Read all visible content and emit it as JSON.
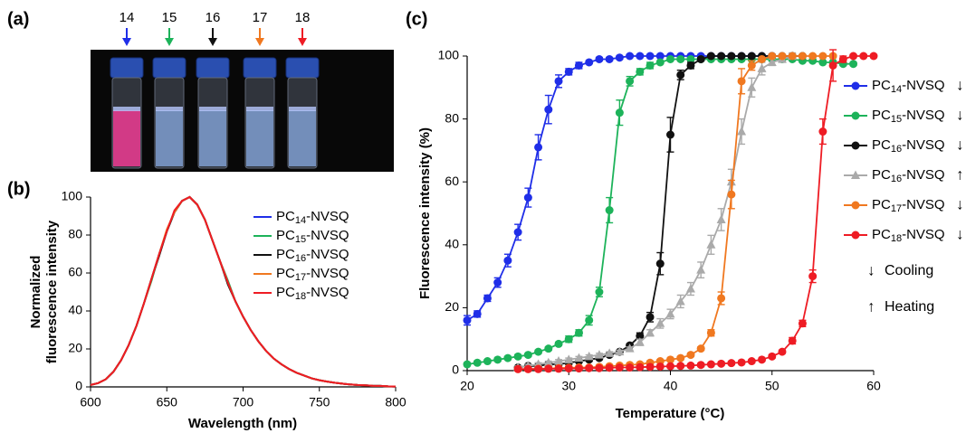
{
  "photo": {
    "panel_label": "(a)",
    "labels": [
      {
        "text": "14",
        "color": "#1f2ee8"
      },
      {
        "text": "15",
        "color": "#1db35a"
      },
      {
        "text": "16",
        "color": "#111111"
      },
      {
        "text": "17",
        "color": "#f07820"
      },
      {
        "text": "18",
        "color": "#ee1c24"
      }
    ]
  },
  "chart_data": [
    {
      "type": "line",
      "panel_label": "(b)",
      "xlabel": "Wavelength (nm)",
      "ylabel": [
        "Normalized",
        "fluorescence intensity"
      ],
      "xlim": [
        600,
        800
      ],
      "xticks": [
        600,
        650,
        700,
        750,
        800
      ],
      "ylim": [
        0,
        100
      ],
      "yticks": [
        0,
        20,
        40,
        60,
        80,
        100
      ],
      "markers": false,
      "x": [
        600,
        605,
        610,
        615,
        620,
        625,
        630,
        635,
        640,
        645,
        650,
        655,
        660,
        665,
        670,
        675,
        680,
        685,
        690,
        695,
        700,
        705,
        710,
        715,
        720,
        725,
        730,
        735,
        740,
        745,
        750,
        755,
        760,
        765,
        770,
        775,
        780,
        785,
        790,
        795,
        800
      ],
      "series": [
        {
          "name": "PC14-NVSQ",
          "color": "#1f2ee8",
          "values": [
            1,
            2,
            4,
            8,
            14,
            22,
            32,
            44,
            57,
            70,
            82,
            92,
            98,
            100,
            96,
            88,
            77,
            66,
            55,
            45,
            37,
            30,
            24,
            19,
            15,
            12,
            9.5,
            7.5,
            6,
            4.5,
            3.5,
            2.8,
            2.2,
            1.7,
            1.3,
            1,
            0.8,
            0.6,
            0.5,
            0.3,
            0.2
          ]
        },
        {
          "name": "PC15-NVSQ",
          "color": "#1db35a",
          "values": [
            1,
            2,
            4,
            8,
            14,
            22,
            32,
            44,
            56,
            70,
            82,
            92,
            98,
            100,
            96,
            88,
            77,
            66,
            56,
            45,
            37,
            30,
            24,
            19,
            15,
            12,
            9.5,
            7.5,
            6,
            4.5,
            3.5,
            2.8,
            2.2,
            1.7,
            1.3,
            1,
            0.8,
            0.6,
            0.5,
            0.3,
            0.2
          ]
        },
        {
          "name": "PC16-NVSQ",
          "color": "#111111",
          "values": [
            1,
            2,
            4,
            8,
            14,
            22,
            32,
            44,
            57,
            69,
            82,
            92,
            98,
            100,
            96,
            88,
            77,
            66,
            54,
            45,
            37,
            30,
            24,
            19,
            15,
            12,
            9.5,
            7.5,
            6,
            4.5,
            3.5,
            2.8,
            2.2,
            1.7,
            1.3,
            1,
            0.8,
            0.6,
            0.5,
            0.3,
            0.2
          ]
        },
        {
          "name": "PC17-NVSQ",
          "color": "#f07820",
          "values": [
            1,
            2,
            4,
            8,
            14,
            22,
            32,
            44,
            57,
            70,
            83,
            92,
            98,
            100,
            96,
            88,
            77,
            66,
            55,
            45,
            37,
            30,
            24,
            19,
            15,
            12,
            9.5,
            7.5,
            6,
            4.5,
            3.5,
            2.8,
            2.2,
            1.7,
            1.3,
            1,
            0.8,
            0.6,
            0.5,
            0.3,
            0.2
          ]
        },
        {
          "name": "PC18-NVSQ",
          "color": "#ee1c24",
          "values": [
            1,
            2,
            4,
            8,
            14,
            22,
            32,
            44,
            57,
            70,
            82,
            93,
            98,
            100,
            96,
            88,
            77,
            66,
            55,
            45,
            37,
            30,
            24,
            19,
            15,
            12,
            9.5,
            7.5,
            6,
            4.5,
            3.5,
            2.8,
            2.2,
            1.7,
            1.3,
            1,
            0.8,
            0.6,
            0.5,
            0.3,
            0.2
          ]
        }
      ]
    },
    {
      "type": "line",
      "panel_label": "(c)",
      "xlabel": "Temperature (°C)",
      "ylabel": [
        "Fluorescence intensity (%)"
      ],
      "xlim": [
        20,
        60
      ],
      "xticks": [
        20,
        30,
        40,
        50,
        60
      ],
      "ylim": [
        0,
        100
      ],
      "yticks": [
        0,
        20,
        40,
        60,
        80,
        100
      ],
      "markers": true,
      "series": [
        {
          "name": "PC14-NVSQ",
          "direction": "↓",
          "marker": "circle",
          "color": "#1f2ee8",
          "x": [
            20,
            21,
            22,
            23,
            24,
            25,
            26,
            27,
            28,
            29,
            30,
            31,
            32,
            33,
            34,
            35,
            36,
            37,
            38,
            39,
            40,
            41,
            42,
            43,
            44,
            45,
            46,
            47,
            48,
            49,
            50
          ],
          "values": [
            16,
            18,
            23,
            28,
            35,
            44,
            55,
            71,
            83,
            92,
            95,
            97,
            98,
            99,
            99,
            99.5,
            100,
            100,
            100,
            100,
            100,
            100,
            100,
            100,
            100,
            100,
            100,
            100,
            100,
            100,
            100
          ],
          "errors": [
            1.5,
            1,
            1,
            1.5,
            2,
            2.5,
            3,
            4,
            4.5,
            2,
            1,
            1,
            0.5,
            0.5,
            0.5,
            0.5,
            0.5,
            0.5,
            0.5,
            0.5,
            0.5,
            0.5,
            0.5,
            0.5,
            0.5,
            0.5,
            0.5,
            0.5,
            0.5,
            0.5,
            0.5
          ]
        },
        {
          "name": "PC15-NVSQ",
          "direction": "↓",
          "marker": "circle",
          "color": "#1db35a",
          "x": [
            20,
            21,
            22,
            23,
            24,
            25,
            26,
            27,
            28,
            29,
            30,
            31,
            32,
            33,
            34,
            35,
            36,
            37,
            38,
            39,
            40,
            41,
            42,
            43,
            44,
            45,
            46,
            47,
            48,
            49,
            50,
            51,
            52,
            53,
            54,
            55,
            56,
            57,
            58
          ],
          "values": [
            2,
            2.5,
            3,
            3.5,
            4,
            4.5,
            5,
            6,
            7,
            8.5,
            10,
            12,
            16,
            25,
            51,
            82,
            92,
            95,
            97,
            98,
            99,
            99,
            99,
            99,
            99,
            99,
            99,
            99,
            99,
            99,
            99,
            99,
            99,
            98.5,
            98.5,
            98,
            98,
            97.5,
            97.5
          ],
          "errors": [
            0.5,
            0.5,
            0.5,
            0.5,
            0.5,
            0.5,
            0.5,
            0.5,
            0.5,
            0.5,
            1,
            1,
            1.5,
            1.5,
            4,
            4,
            1.5,
            1,
            1,
            0.5,
            0.5,
            0.5,
            0.5,
            0.5,
            0.5,
            0.5,
            0.5,
            0.5,
            0.5,
            0.5,
            0.5,
            0.5,
            0.5,
            0.5,
            0.5,
            0.5,
            0.5,
            0.5,
            0.5
          ]
        },
        {
          "name": "PC16-NVSQ",
          "direction": "↓",
          "marker": "circle",
          "color": "#111111",
          "x": [
            25,
            26,
            27,
            28,
            29,
            30,
            31,
            32,
            33,
            34,
            35,
            36,
            37,
            38,
            39,
            40,
            41,
            42,
            43,
            44,
            45,
            46,
            47,
            48,
            49,
            50,
            51,
            52,
            53
          ],
          "values": [
            1,
            1.5,
            1.5,
            2,
            2,
            2.5,
            3,
            3.5,
            4,
            5,
            6,
            8,
            11,
            17,
            34,
            75,
            94,
            97,
            99,
            100,
            100,
            100,
            100,
            100,
            100,
            100,
            100,
            100,
            100
          ],
          "errors": [
            0.5,
            0.5,
            0.5,
            0.5,
            0.5,
            0.5,
            0.5,
            0.5,
            0.5,
            0.5,
            0.5,
            0.5,
            1,
            1.5,
            3.5,
            5.5,
            1.5,
            1,
            0.5,
            0.5,
            0.5,
            0.5,
            0.5,
            0.5,
            0.5,
            0.5,
            0.5,
            0.5,
            0.5
          ]
        },
        {
          "name": "PC16-NVSQ",
          "direction": "↑",
          "marker": "triangle",
          "color": "#aaaaaa",
          "x": [
            25,
            26,
            27,
            28,
            29,
            30,
            31,
            32,
            33,
            34,
            35,
            36,
            37,
            38,
            39,
            40,
            41,
            42,
            43,
            44,
            45,
            46,
            47,
            48,
            49,
            50,
            51,
            52
          ],
          "values": [
            1,
            1.5,
            2,
            2.5,
            3,
            3.5,
            4,
            4.5,
            5,
            5.5,
            6,
            7,
            9,
            12,
            15,
            18,
            22,
            26,
            32,
            40,
            48,
            60,
            76,
            90,
            96,
            98,
            99,
            100
          ],
          "errors": [
            0.5,
            0.5,
            0.5,
            0.5,
            0.5,
            0.5,
            0.5,
            0.5,
            0.5,
            0.5,
            0.5,
            0.5,
            1,
            1,
            1.5,
            1.5,
            2,
            2,
            2.5,
            3,
            3.5,
            4,
            4,
            3,
            2,
            1,
            1,
            1
          ]
        },
        {
          "name": "PC17-NVSQ",
          "direction": "↓",
          "marker": "circle",
          "color": "#f07820",
          "x": [
            25,
            26,
            27,
            28,
            29,
            30,
            31,
            32,
            33,
            34,
            35,
            36,
            37,
            38,
            39,
            40,
            41,
            42,
            43,
            44,
            45,
            46,
            47,
            48,
            49,
            50,
            51,
            52,
            53,
            54,
            55,
            56
          ],
          "values": [
            0.5,
            0.5,
            0.6,
            0.7,
            0.8,
            0.9,
            1,
            1,
            1.2,
            1.4,
            1.6,
            1.8,
            2,
            2.5,
            3,
            3.5,
            4,
            5,
            7,
            12,
            23,
            56,
            92,
            97,
            99,
            100,
            100,
            100,
            100,
            100,
            100,
            100
          ],
          "errors": [
            0.5,
            0.5,
            0.5,
            0.5,
            0.5,
            0.5,
            0.5,
            0.5,
            0.5,
            0.5,
            0.5,
            0.5,
            0.5,
            0.5,
            0.5,
            0.5,
            0.5,
            0.5,
            0.5,
            1,
            2,
            4.5,
            4,
            1.5,
            0.5,
            0.5,
            0.5,
            0.5,
            0.5,
            0.5,
            0.5,
            0.5
          ]
        },
        {
          "name": "PC18-NVSQ",
          "direction": "↓",
          "marker": "circle",
          "color": "#ee1c24",
          "x": [
            25,
            26,
            27,
            28,
            29,
            30,
            31,
            32,
            33,
            34,
            35,
            36,
            37,
            38,
            39,
            40,
            41,
            42,
            43,
            44,
            45,
            46,
            47,
            48,
            49,
            50,
            51,
            52,
            53,
            54,
            55,
            56,
            57,
            58,
            59,
            60
          ],
          "values": [
            0.5,
            0.5,
            0.5,
            0.6,
            0.6,
            0.7,
            0.7,
            0.8,
            0.8,
            0.9,
            1,
            1,
            1.1,
            1.2,
            1.3,
            1.4,
            1.5,
            1.6,
            1.8,
            2,
            2.2,
            2.4,
            2.6,
            3,
            3.5,
            4.5,
            6,
            9.5,
            15,
            30,
            76,
            97,
            99,
            100,
            100,
            100
          ],
          "errors": [
            0.5,
            0.5,
            0.5,
            0.5,
            0.5,
            0.5,
            0.5,
            0.5,
            0.5,
            0.5,
            0.5,
            0.5,
            0.5,
            0.5,
            0.5,
            0.5,
            0.5,
            0.5,
            0.5,
            0.5,
            0.5,
            0.5,
            0.5,
            0.5,
            0.5,
            0.5,
            0.5,
            1,
            1,
            2,
            4,
            5,
            1,
            0.5,
            0.5,
            0.5
          ]
        }
      ],
      "legend_notes": [
        {
          "symbol": "↓",
          "label": "Cooling"
        },
        {
          "symbol": "↑",
          "label": "Heating"
        }
      ]
    }
  ]
}
